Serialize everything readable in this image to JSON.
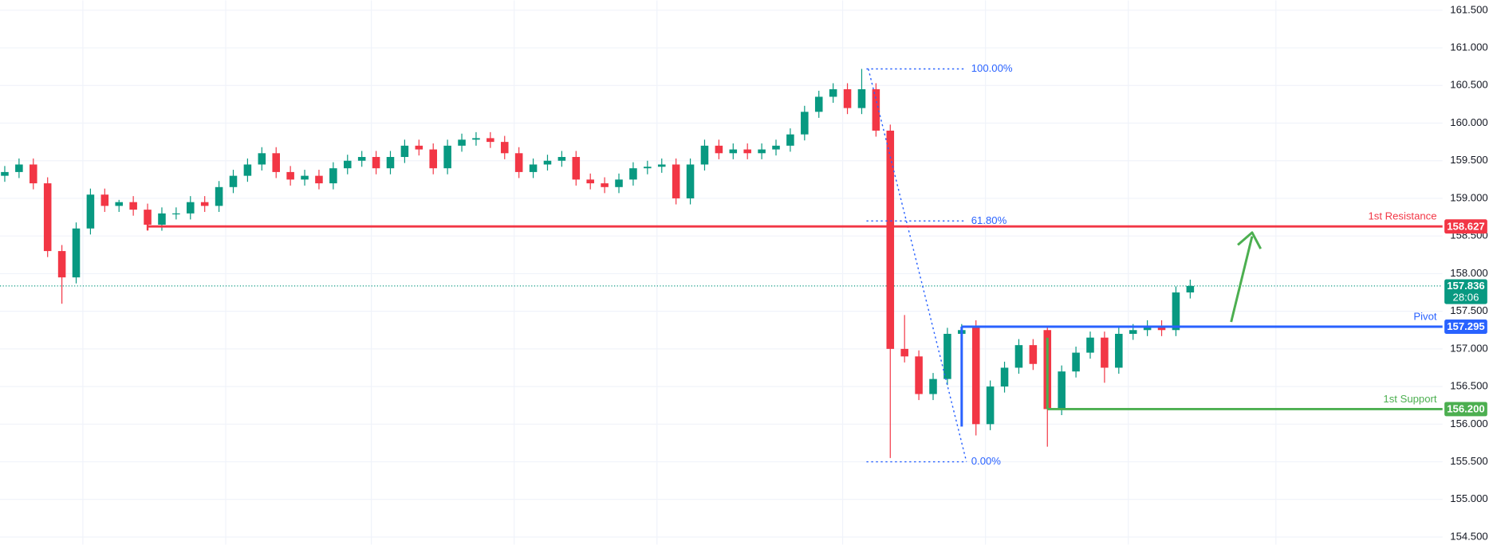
{
  "chart_data": {
    "type": "candlestick",
    "colors": {
      "up": "#089981",
      "down": "#f23645"
    },
    "ylim": [
      154.4,
      161.63
    ],
    "yticks": [
      {
        "value": 154.5,
        "label": "154.500"
      },
      {
        "value": 155,
        "label": "155.000"
      },
      {
        "value": 155.5,
        "label": "155.500"
      },
      {
        "value": 156,
        "label": "156.000"
      },
      {
        "value": 156.5,
        "label": "156.500"
      },
      {
        "value": 157,
        "label": "157.000"
      },
      {
        "value": 157.5,
        "label": "157.500"
      },
      {
        "value": 158,
        "label": "158.000"
      },
      {
        "value": 158.5,
        "label": "158.500"
      },
      {
        "value": 159,
        "label": "159.000"
      },
      {
        "value": 159.5,
        "label": "159.500"
      },
      {
        "value": 160,
        "label": "160.000"
      },
      {
        "value": 160.5,
        "label": "160.500"
      },
      {
        "value": 161,
        "label": "161.000"
      },
      {
        "value": 161.5,
        "label": "161.500"
      }
    ],
    "grid": true,
    "open": [
      159.3,
      159.35,
      159.45,
      159.2,
      158.3,
      157.95,
      158.6,
      159.05,
      158.9,
      158.95,
      158.85,
      158.65,
      158.8,
      158.8,
      158.95,
      158.9,
      159.15,
      159.3,
      159.45,
      159.6,
      159.35,
      159.25,
      159.3,
      159.2,
      159.4,
      159.5,
      159.55,
      159.4,
      159.55,
      159.7,
      159.65,
      159.4,
      159.7,
      159.78,
      159.8,
      159.75,
      159.6,
      159.35,
      159.45,
      159.5,
      159.55,
      159.25,
      159.2,
      159.15,
      159.25,
      159.4,
      159.42,
      159.45,
      159.0,
      159.45,
      159.7,
      159.6,
      159.65,
      159.6,
      159.65,
      159.7,
      159.85,
      160.15,
      160.35,
      160.45,
      160.2,
      160.45,
      159.9,
      157.0,
      156.9,
      156.4,
      156.6,
      157.2,
      157.3,
      156.0,
      156.5,
      156.75,
      157.05,
      157.25,
      156.2,
      156.7,
      156.95,
      157.15,
      156.75,
      157.2,
      157.25,
      157.3,
      157.25,
      157.75
    ],
    "high": [
      159.43,
      159.53,
      159.53,
      159.28,
      158.38,
      158.68,
      159.13,
      159.13,
      158.98,
      159.03,
      158.93,
      158.88,
      158.88,
      159.03,
      159.03,
      159.23,
      159.38,
      159.53,
      159.68,
      159.68,
      159.43,
      159.38,
      159.38,
      159.48,
      159.58,
      159.63,
      159.63,
      159.63,
      159.78,
      159.78,
      159.73,
      159.78,
      159.86,
      159.88,
      159.88,
      159.83,
      159.68,
      159.53,
      159.58,
      159.63,
      159.63,
      159.33,
      159.28,
      159.33,
      159.48,
      159.5,
      159.53,
      159.53,
      159.53,
      159.78,
      159.78,
      159.73,
      159.73,
      159.73,
      159.78,
      159.93,
      160.23,
      160.43,
      160.53,
      160.53,
      160.72,
      160.53,
      159.98,
      157.45,
      156.98,
      156.68,
      157.28,
      157.33,
      157.38,
      156.58,
      156.83,
      157.13,
      157.13,
      157.3,
      156.78,
      157.03,
      157.23,
      157.23,
      157.28,
      157.33,
      157.38,
      157.38,
      157.83,
      157.92
    ],
    "low": [
      159.22,
      159.27,
      159.12,
      158.22,
      157.6,
      157.87,
      158.52,
      158.82,
      158.82,
      158.77,
      158.57,
      158.57,
      158.72,
      158.72,
      158.82,
      158.82,
      159.07,
      159.22,
      159.37,
      159.27,
      159.17,
      159.17,
      159.12,
      159.12,
      159.32,
      159.42,
      159.32,
      159.32,
      159.47,
      159.57,
      159.32,
      159.32,
      159.62,
      159.7,
      159.67,
      159.52,
      159.27,
      159.27,
      159.37,
      159.42,
      159.17,
      159.12,
      159.07,
      159.07,
      159.17,
      159.32,
      159.34,
      158.92,
      158.92,
      159.37,
      159.52,
      159.52,
      159.52,
      159.52,
      159.57,
      159.62,
      159.77,
      160.07,
      160.27,
      160.12,
      160.12,
      159.82,
      155.55,
      156.82,
      156.32,
      156.32,
      156.52,
      157.12,
      155.85,
      155.92,
      156.42,
      156.67,
      156.72,
      155.7,
      156.12,
      156.62,
      156.87,
      156.55,
      156.67,
      157.12,
      157.17,
      157.17,
      157.17,
      157.67
    ],
    "close": [
      159.35,
      159.45,
      159.2,
      158.3,
      157.95,
      158.6,
      159.05,
      158.9,
      158.95,
      158.85,
      158.65,
      158.8,
      158.8,
      158.95,
      158.9,
      159.15,
      159.3,
      159.45,
      159.6,
      159.35,
      159.25,
      159.3,
      159.2,
      159.4,
      159.5,
      159.55,
      159.4,
      159.55,
      159.7,
      159.65,
      159.4,
      159.7,
      159.78,
      159.8,
      159.75,
      159.6,
      159.35,
      159.45,
      159.5,
      159.55,
      159.25,
      159.2,
      159.15,
      159.25,
      159.4,
      159.42,
      159.45,
      159.0,
      159.45,
      159.7,
      159.6,
      159.65,
      159.6,
      159.65,
      159.7,
      159.85,
      160.15,
      160.35,
      160.45,
      160.2,
      160.45,
      159.9,
      157.0,
      156.9,
      156.4,
      156.6,
      157.2,
      157.25,
      156.0,
      156.5,
      156.75,
      157.05,
      156.8,
      156.2,
      156.7,
      156.95,
      157.15,
      156.75,
      157.2,
      157.25,
      157.3,
      157.25,
      157.75,
      157.836
    ],
    "levels": [
      {
        "name": "1st Resistance",
        "value": 158.627,
        "color": "#f23645"
      },
      {
        "name": "Pivot",
        "value": 157.295,
        "color": "#2962ff"
      },
      {
        "name": "1st Support",
        "value": 156.2,
        "value_label": "156.200",
        "color": "#4caf50"
      }
    ],
    "fib": [
      {
        "label": "100.00%",
        "value": 160.72
      },
      {
        "label": "61.80%",
        "value": 158.7
      },
      {
        "label": "0.00%",
        "value": 155.5
      }
    ],
    "last_price": {
      "value": 157.836,
      "countdown": "28:06"
    }
  }
}
